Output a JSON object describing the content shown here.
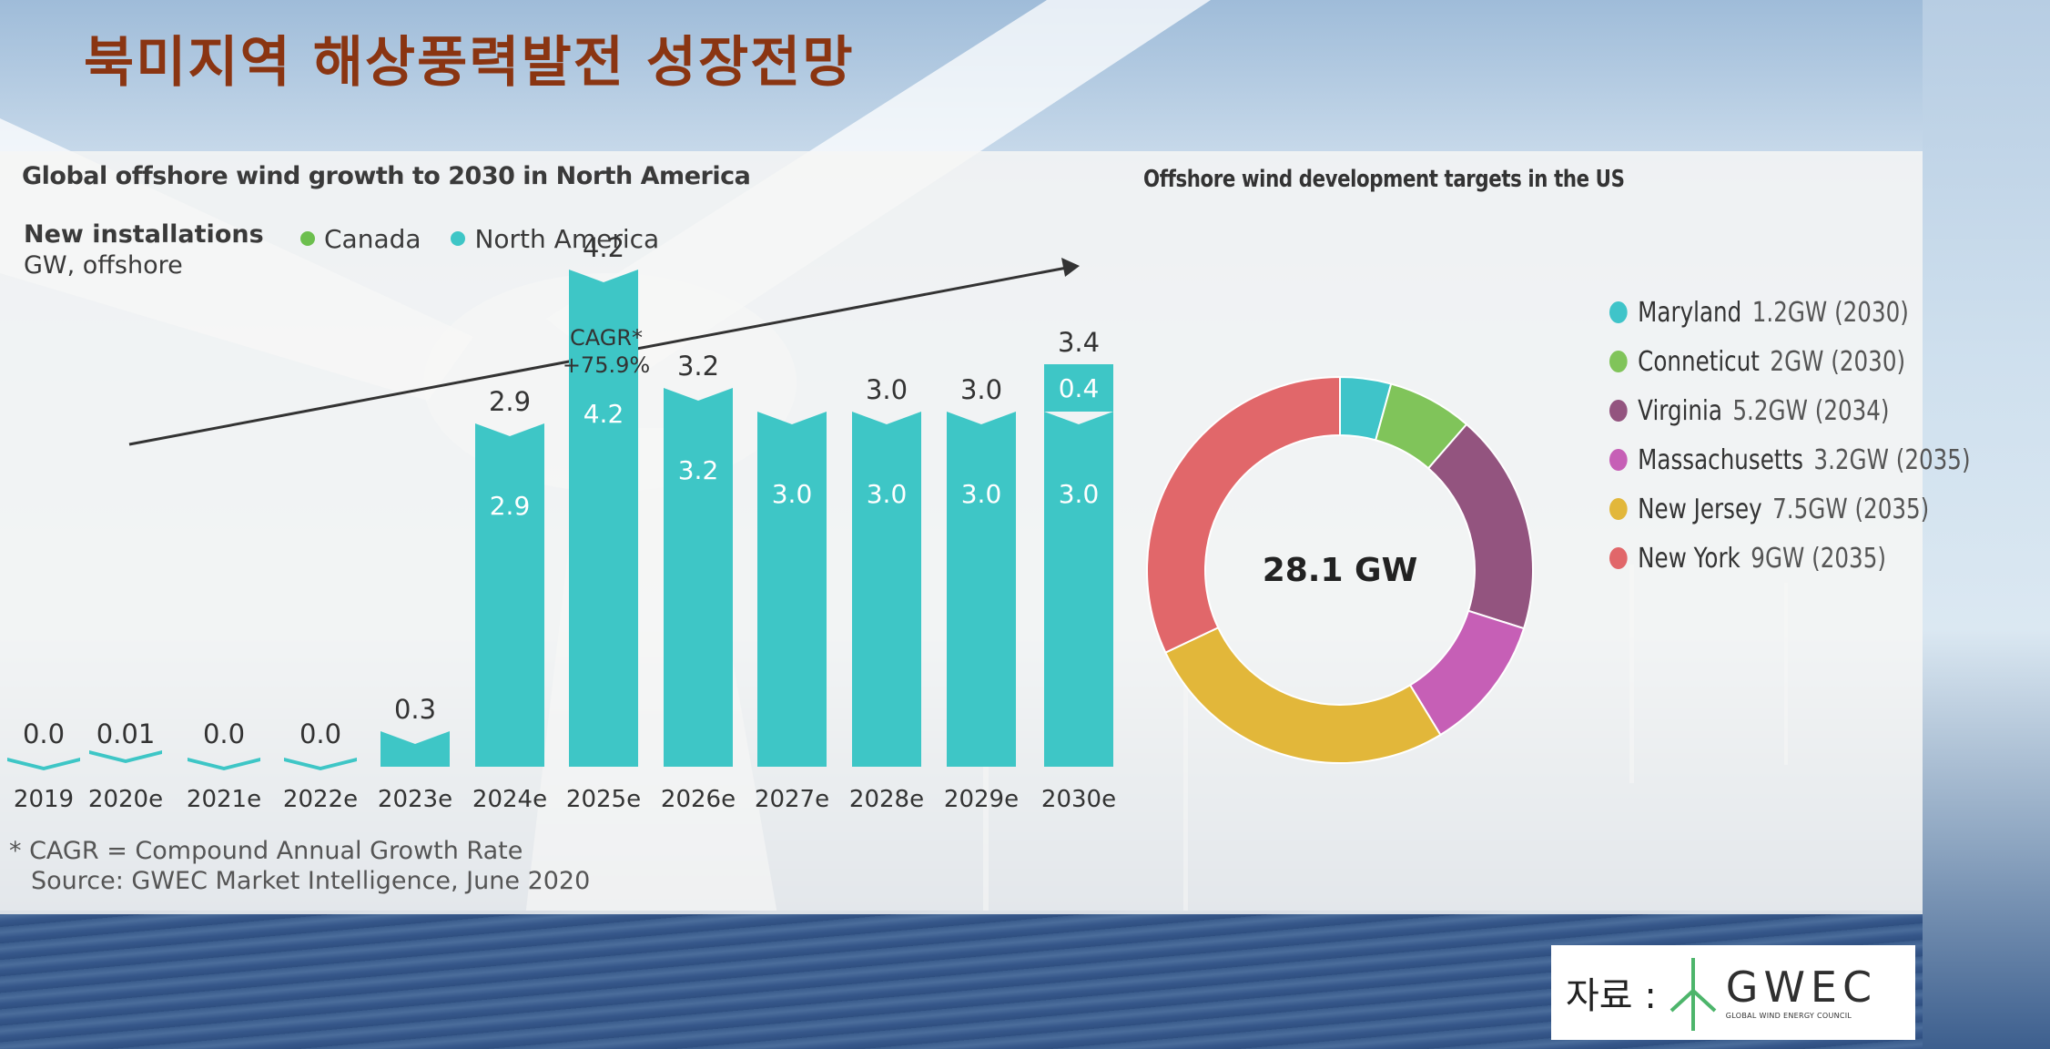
{
  "page": {
    "title": "북미지역 해상풍력발전 성장전망",
    "source_label": "자료 :",
    "logo_text": "GWEC",
    "logo_subtext": "GLOBAL WIND ENERGY COUNCIL"
  },
  "colors": {
    "canada": "#6cbf4e",
    "north_america": "#3ec6c6",
    "title": "#8a3512"
  },
  "chart_data": [
    {
      "type": "bar",
      "title": "Global offshore wind growth to 2030 in North America",
      "ylabel": "New installations",
      "ylabel_unit": "GW, offshore",
      "categories": [
        "2019",
        "2020e",
        "2021e",
        "2022e",
        "2023e",
        "2024e",
        "2025e",
        "2026e",
        "2027e",
        "2028e",
        "2029e",
        "2030e"
      ],
      "series": [
        {
          "name": "Canada",
          "color": "#6cbf4e",
          "values": [
            0.0,
            0.0,
            0.0,
            0.0,
            0.0,
            0.0,
            0.0,
            0.0,
            0.0,
            0.0,
            0.0,
            0.0
          ]
        },
        {
          "name": "North America",
          "color": "#3ec6c6",
          "values": [
            0.0,
            0.01,
            0.0,
            0.0,
            0.3,
            2.9,
            4.2,
            3.2,
            3.0,
            3.0,
            3.0,
            3.0
          ]
        },
        {
          "name": "",
          "color": "#3ec6c6",
          "values": [
            0,
            0,
            0,
            0,
            0,
            0,
            0,
            0,
            0,
            0,
            0,
            0.4
          ]
        }
      ],
      "totals": [
        "0.0",
        "0.01",
        "0.0",
        "0.0",
        "0.3",
        "2.9",
        "4.2",
        "3.2",
        "",
        "3.0",
        "3.0",
        "3.4"
      ],
      "inner_labels": [
        "",
        "",
        "",
        "",
        "",
        "2.9",
        "4.2",
        "3.2",
        "3.0",
        "3.0",
        "3.0",
        "3.0"
      ],
      "top_segment_labels": [
        "",
        "",
        "",
        "",
        "",
        "",
        "",
        "",
        "",
        "",
        "",
        "0.4"
      ],
      "annotation": "CAGR* +75.9%",
      "annotation_lines": [
        "CAGR*",
        "+75.9%"
      ],
      "ylim": [
        0,
        4.5
      ],
      "legend": "top-left",
      "grid": false,
      "footnotes": [
        "* CAGR = Compound Annual Growth Rate",
        "Source: GWEC Market Intelligence, June 2020"
      ]
    },
    {
      "type": "pie",
      "title": "Offshore wind development targets in the US",
      "center_label": "28.1 GW",
      "labels": [
        "Maryland",
        "Conneticut",
        "Virginia",
        "Massachusetts",
        "New Jersey",
        "New York"
      ],
      "values": [
        1.2,
        2,
        5.2,
        3.2,
        7.5,
        9
      ],
      "value_labels": [
        "1.2GW (2030)",
        "2GW (2030)",
        "5.2GW (2034)",
        "3.2GW (2035)",
        "7.5GW (2035)",
        "9GW (2035)"
      ],
      "colors": [
        "#3fc4c9",
        "#80c45a",
        "#93547f",
        "#c65fb6",
        "#e2b73a",
        "#e1676a"
      ],
      "legend": "right"
    }
  ]
}
